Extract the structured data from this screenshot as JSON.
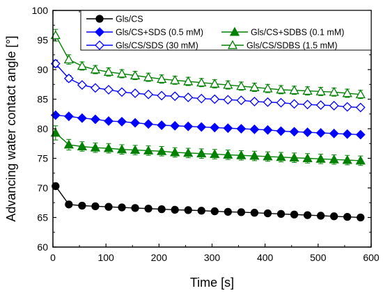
{
  "chart_data": {
    "type": "line",
    "xlabel": "Time [s]",
    "ylabel": "Advancing water contact angle [°]",
    "xlim": [
      0,
      600
    ],
    "ylim": [
      60,
      100
    ],
    "xticks": [
      0,
      100,
      200,
      300,
      400,
      500,
      600
    ],
    "yticks": [
      60,
      65,
      70,
      75,
      80,
      85,
      90,
      95,
      100
    ],
    "grid": false,
    "legend_position": "top-right",
    "series": [
      {
        "name": "Gls/CS",
        "color": "#000000",
        "marker": "circle-filled",
        "x": [
          5,
          30,
          55,
          80,
          105,
          130,
          155,
          180,
          205,
          230,
          255,
          280,
          305,
          330,
          355,
          380,
          405,
          430,
          455,
          480,
          505,
          530,
          555,
          580
        ],
        "y": [
          70.3,
          67.2,
          67.0,
          66.9,
          66.8,
          66.7,
          66.6,
          66.5,
          66.4,
          66.3,
          66.25,
          66.15,
          66.05,
          65.95,
          65.9,
          65.8,
          65.7,
          65.6,
          65.5,
          65.4,
          65.3,
          65.2,
          65.1,
          65.0
        ],
        "err": [
          0.3,
          0.2,
          0.2,
          0.2,
          0.2,
          0.2,
          0.2,
          0.2,
          0.2,
          0.2,
          0.2,
          0.2,
          0.2,
          0.2,
          0.2,
          0.2,
          0.2,
          0.2,
          0.2,
          0.2,
          0.2,
          0.2,
          0.2,
          0.2
        ]
      },
      {
        "name": "Gls/CS+SDS (0.5 mM)",
        "color": "#0000ff",
        "marker": "diamond-filled",
        "x": [
          5,
          30,
          55,
          80,
          105,
          130,
          155,
          180,
          205,
          230,
          255,
          280,
          305,
          330,
          355,
          380,
          405,
          430,
          455,
          480,
          505,
          530,
          555,
          580
        ],
        "y": [
          82.3,
          82.1,
          81.8,
          81.6,
          81.3,
          81.2,
          81.0,
          80.8,
          80.6,
          80.5,
          80.4,
          80.3,
          80.2,
          80.1,
          80.0,
          79.9,
          79.8,
          79.6,
          79.5,
          79.4,
          79.3,
          79.2,
          79.1,
          79.0
        ],
        "err": [
          0.3,
          0.3,
          0.3,
          0.3,
          0.3,
          0.3,
          0.3,
          0.3,
          0.3,
          0.3,
          0.3,
          0.3,
          0.3,
          0.3,
          0.3,
          0.3,
          0.3,
          0.3,
          0.3,
          0.3,
          0.3,
          0.3,
          0.3,
          0.3
        ]
      },
      {
        "name": "Gls/CS/SDS (30 mM)",
        "color": "#0000ff",
        "marker": "diamond-open",
        "x": [
          5,
          30,
          55,
          80,
          105,
          130,
          155,
          180,
          205,
          230,
          255,
          280,
          305,
          330,
          355,
          380,
          405,
          430,
          455,
          480,
          505,
          530,
          555,
          580
        ],
        "y": [
          91.0,
          88.5,
          87.4,
          86.9,
          86.6,
          86.2,
          86.0,
          85.8,
          85.6,
          85.5,
          85.3,
          85.1,
          85.0,
          84.9,
          84.8,
          84.6,
          84.5,
          84.4,
          84.2,
          84.1,
          84.0,
          83.9,
          83.7,
          83.6
        ],
        "err": [
          0.6,
          0.5,
          0.4,
          0.4,
          0.4,
          0.4,
          0.4,
          0.4,
          0.4,
          0.4,
          0.4,
          0.4,
          0.4,
          0.4,
          0.4,
          0.4,
          0.4,
          0.4,
          0.4,
          0.4,
          0.4,
          0.4,
          0.4,
          0.4
        ]
      },
      {
        "name": "Gls/CS+SDBS (0.1 mM)",
        "color": "#008000",
        "marker": "triangle-filled",
        "x": [
          5,
          30,
          55,
          80,
          105,
          130,
          155,
          180,
          205,
          230,
          255,
          280,
          305,
          330,
          355,
          380,
          405,
          430,
          455,
          480,
          505,
          530,
          555,
          580
        ],
        "y": [
          79.3,
          77.3,
          77.0,
          76.8,
          76.7,
          76.5,
          76.4,
          76.3,
          76.2,
          76.0,
          75.9,
          75.8,
          75.7,
          75.6,
          75.5,
          75.4,
          75.3,
          75.2,
          75.1,
          75.0,
          74.9,
          74.8,
          74.7,
          74.6
        ],
        "err": [
          1.2,
          0.9,
          0.8,
          0.8,
          0.8,
          0.8,
          0.8,
          0.8,
          0.8,
          0.8,
          0.8,
          0.8,
          0.8,
          0.8,
          0.8,
          0.8,
          0.8,
          0.8,
          0.8,
          0.8,
          0.8,
          0.8,
          0.8,
          0.8
        ]
      },
      {
        "name": "Gls/CS/SDBS (1.5 mM)",
        "color": "#008000",
        "marker": "triangle-open",
        "x": [
          5,
          30,
          55,
          80,
          105,
          130,
          155,
          180,
          205,
          230,
          255,
          280,
          305,
          330,
          355,
          380,
          405,
          430,
          455,
          480,
          505,
          530,
          555,
          580
        ],
        "y": [
          95.8,
          91.7,
          90.6,
          90.0,
          89.6,
          89.3,
          89.0,
          88.7,
          88.4,
          88.2,
          88.0,
          87.8,
          87.6,
          87.4,
          87.2,
          87.0,
          86.8,
          86.6,
          86.5,
          86.4,
          86.3,
          86.2,
          86.0,
          85.8
        ],
        "err": [
          1.0,
          0.8,
          0.7,
          0.7,
          0.7,
          0.7,
          0.7,
          0.7,
          0.7,
          0.7,
          0.7,
          0.7,
          0.7,
          0.7,
          0.7,
          0.7,
          0.7,
          0.7,
          0.7,
          0.7,
          0.7,
          0.7,
          0.7,
          0.7
        ]
      }
    ]
  }
}
